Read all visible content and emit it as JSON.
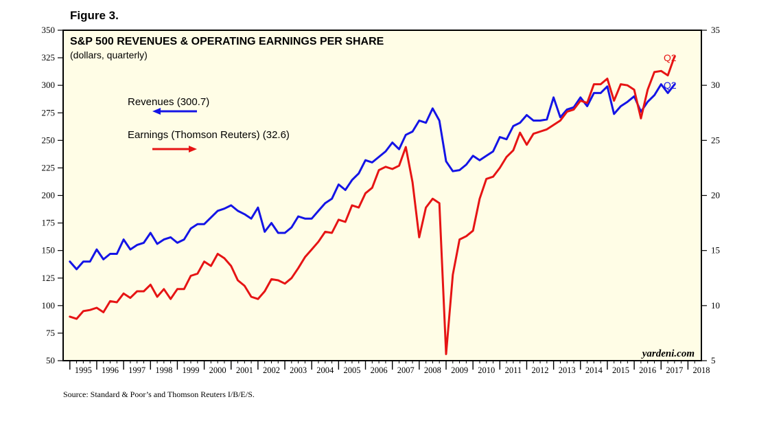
{
  "figure_label": "Figure 3.",
  "source": "Source: Standard & Poor’s and Thomson Reuters I/B/E/S.",
  "watermark": "yardeni.com",
  "chart_data": {
    "type": "line",
    "title": "S&P 500 REVENUES & OPERATING EARNINGS PER SHARE",
    "subtitle": "(dollars, quarterly)",
    "background_color": "#fffde6",
    "x_ticks": [
      "1995",
      "1996",
      "1997",
      "1998",
      "1999",
      "2000",
      "2001",
      "2002",
      "2003",
      "2004",
      "2005",
      "2006",
      "2007",
      "2008",
      "2009",
      "2010",
      "2011",
      "2012",
      "2013",
      "2014",
      "2015",
      "2016",
      "2017",
      "2018"
    ],
    "x_range": [
      1994.75,
      2018.5
    ],
    "left_axis": {
      "min": 50,
      "max": 350,
      "ticks": [
        50,
        75,
        100,
        125,
        150,
        175,
        200,
        225,
        250,
        275,
        300,
        325,
        350
      ]
    },
    "right_axis": {
      "min": 5,
      "max": 35,
      "ticks": [
        5,
        10,
        15,
        20,
        25,
        30,
        35
      ]
    },
    "grid": false,
    "annotations": {
      "revenues_label": "Revenues (300.7)",
      "earnings_label": "Earnings (Thomson Reuters) (32.6)",
      "revenues_end": "Q2",
      "earnings_end": "Q2"
    },
    "series": [
      {
        "name": "Revenues",
        "axis": "left",
        "color": "#1414e6",
        "values": [
          140,
          133,
          140,
          140,
          151,
          142,
          147,
          147,
          160,
          151,
          155,
          157,
          166,
          156,
          160,
          162,
          157,
          160,
          170,
          174,
          174,
          180,
          186,
          188,
          191,
          186,
          183,
          179,
          189,
          167,
          175,
          166,
          166,
          171,
          181,
          179,
          179,
          186,
          193,
          197,
          210,
          205,
          214,
          220,
          232,
          230,
          235,
          240,
          248,
          242,
          255,
          258,
          268,
          266,
          279,
          268,
          231,
          222,
          223,
          228,
          236,
          232,
          236,
          240,
          253,
          251,
          263,
          266,
          273,
          268,
          268,
          269,
          289,
          271,
          278,
          280,
          289,
          281,
          293,
          293,
          299,
          274,
          281,
          285,
          290,
          276,
          285,
          291,
          301,
          293,
          300.7
        ]
      },
      {
        "name": "Earnings",
        "axis": "right",
        "color": "#e61414",
        "values": [
          9.0,
          8.8,
          9.5,
          9.6,
          9.8,
          9.4,
          10.4,
          10.3,
          11.1,
          10.7,
          11.3,
          11.3,
          11.9,
          10.8,
          11.5,
          10.6,
          11.5,
          11.5,
          12.7,
          12.9,
          14.0,
          13.6,
          14.7,
          14.3,
          13.6,
          12.3,
          11.8,
          10.8,
          10.6,
          11.3,
          12.4,
          12.3,
          12.0,
          12.5,
          13.4,
          14.4,
          15.1,
          15.8,
          16.7,
          16.6,
          17.8,
          17.6,
          19.1,
          18.9,
          20.2,
          20.7,
          22.3,
          22.6,
          22.4,
          22.7,
          24.4,
          21.2,
          16.2,
          18.9,
          19.7,
          19.3,
          5.6,
          12.8,
          16.0,
          16.3,
          16.8,
          19.7,
          21.5,
          21.7,
          22.5,
          23.5,
          24.1,
          25.7,
          24.6,
          25.6,
          25.8,
          26.0,
          26.4,
          26.8,
          27.6,
          27.8,
          28.6,
          28.4,
          30.1,
          30.1,
          30.6,
          28.6,
          30.1,
          30.0,
          29.6,
          27.0,
          29.6,
          31.2,
          31.3,
          30.9,
          32.6
        ]
      }
    ]
  }
}
